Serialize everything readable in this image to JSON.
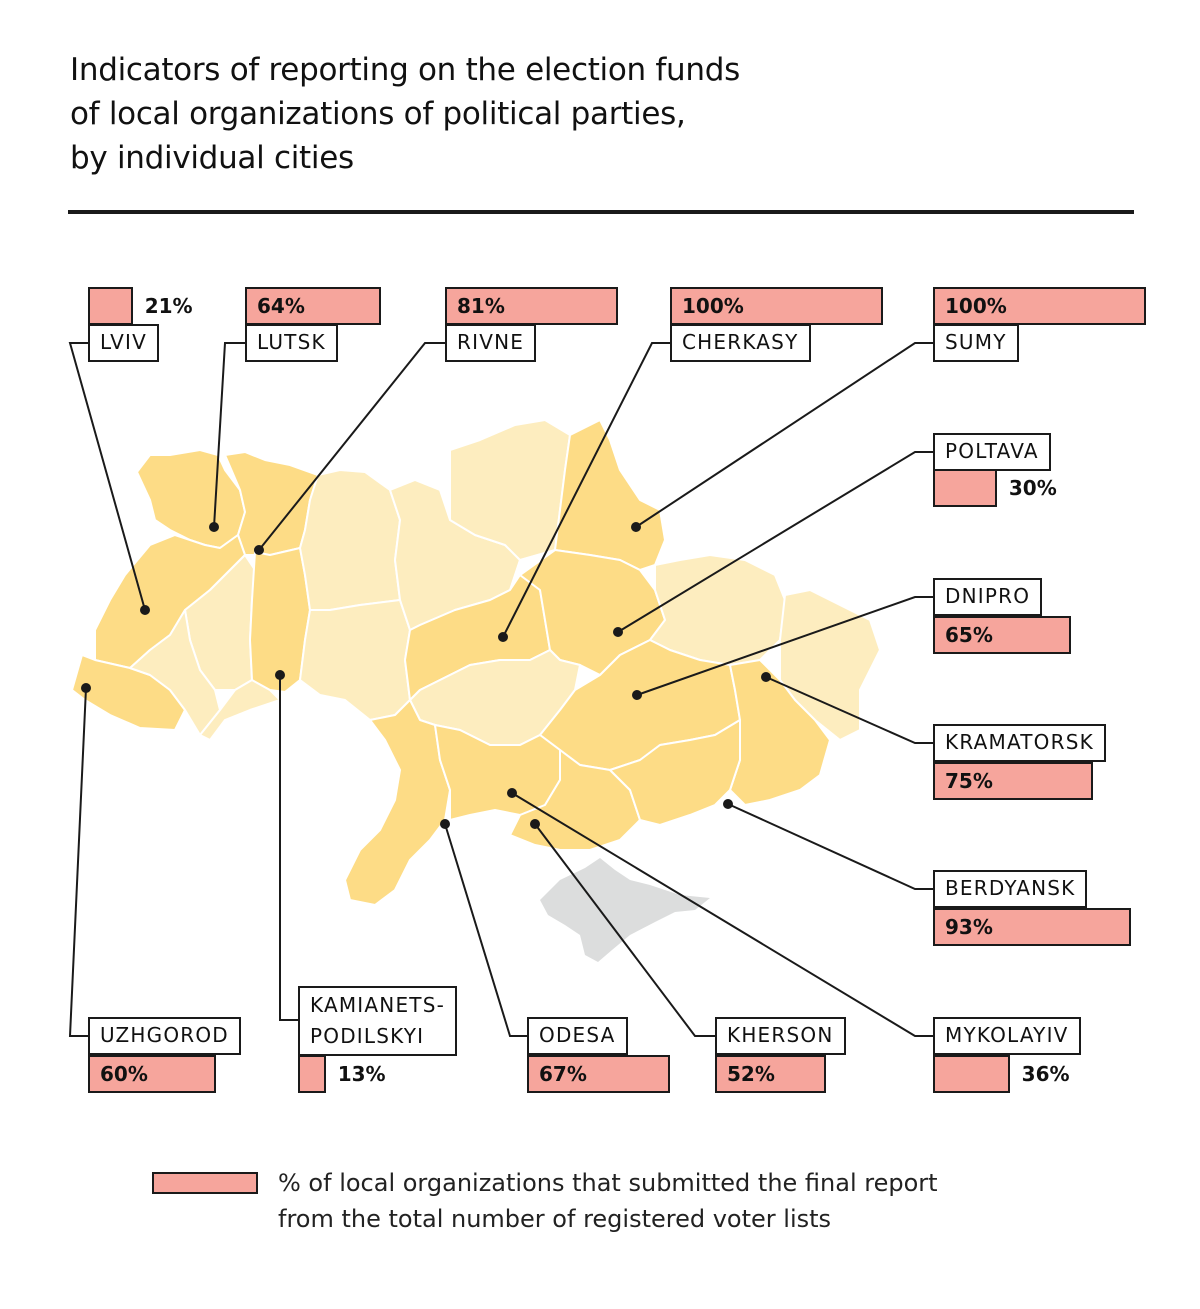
{
  "title": {
    "lines": [
      "Indicators of reporting on the election funds",
      "of local organizations of political parties,",
      "by individual cities"
    ]
  },
  "colors": {
    "bar_fill": "#f6a59c",
    "region_dark": "#fddc86",
    "region_light": "#fdedbf",
    "crimea": "#dcdddd",
    "outline": "#1a1a1a"
  },
  "legend": {
    "lines": [
      "% of local organizations that submitted the final report",
      "from the total number of registered voter lists"
    ]
  },
  "chart_data": {
    "type": "bar",
    "title": "Indicators of reporting on the election funds of local organizations of political parties, by individual cities",
    "xlabel": "",
    "ylabel": "% of local organizations that submitted the final report from the total number of registered voter lists",
    "ylim": [
      0,
      100
    ],
    "categories": [
      "LVIV",
      "LUTSK",
      "RIVNE",
      "CHERKASY",
      "SUMY",
      "POLTAVA",
      "DNIPRO",
      "KRAMATORSK",
      "BERDYANSK",
      "UZHGOROD",
      "KAMIANETS-PODILSKYI",
      "ODESA",
      "KHERSON",
      "MYKOLAYIV"
    ],
    "values": [
      21,
      64,
      81,
      100,
      100,
      30,
      65,
      75,
      93,
      60,
      13,
      67,
      52,
      36
    ],
    "value_labels": [
      "21%",
      "64%",
      "81%",
      "100%",
      "100%",
      "30%",
      "65%",
      "75%",
      "93%",
      "60%",
      "13%",
      "67%",
      "52%",
      "36%"
    ]
  },
  "cities": [
    {
      "id": "lviv",
      "name": "LVIV",
      "value": 21,
      "value_label": "21%"
    },
    {
      "id": "lutsk",
      "name": "LUTSK",
      "value": 64,
      "value_label": "64%"
    },
    {
      "id": "rivne",
      "name": "RIVNE",
      "value": 81,
      "value_label": "81%"
    },
    {
      "id": "cherkasy",
      "name": "CHERKASY",
      "value": 100,
      "value_label": "100%"
    },
    {
      "id": "sumy",
      "name": "SUMY",
      "value": 100,
      "value_label": "100%"
    },
    {
      "id": "poltava",
      "name": "POLTAVA",
      "value": 30,
      "value_label": "30%"
    },
    {
      "id": "dnipro",
      "name": "DNIPRO",
      "value": 65,
      "value_label": "65%"
    },
    {
      "id": "kramatorsk",
      "name": "KRAMATORSK",
      "value": 75,
      "value_label": "75%"
    },
    {
      "id": "berdyansk",
      "name": "BERDYANSK",
      "value": 93,
      "value_label": "93%"
    },
    {
      "id": "uzhgorod",
      "name": "UZHGOROD",
      "value": 60,
      "value_label": "60%"
    },
    {
      "id": "kamianets",
      "name_lines": [
        "KAMIANETS-",
        "PODILSKYI"
      ],
      "value": 13,
      "value_label": "13%"
    },
    {
      "id": "odesa",
      "name": "ODESA",
      "value": 67,
      "value_label": "67%"
    },
    {
      "id": "kherson",
      "name": "KHERSON",
      "value": 52,
      "value_label": "52%"
    },
    {
      "id": "mykolayiv",
      "name": "MYKOLAYIV",
      "value": 36,
      "value_label": "36%"
    }
  ]
}
